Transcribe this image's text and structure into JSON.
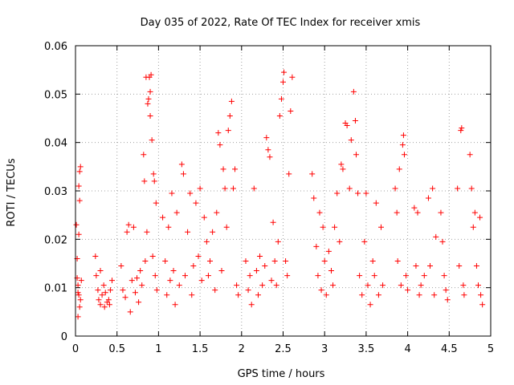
{
  "chart_data": {
    "type": "scatter",
    "title": "Day 035 of 2022, Rate Of TEC Index for receiver xmis",
    "xlabel": "GPS time / hours",
    "ylabel": "ROTI / TECUs",
    "xlim": [
      0,
      5
    ],
    "ylim": [
      0,
      0.06
    ],
    "x_ticks": [
      "0",
      "0.5",
      "1",
      "1.5",
      "2",
      "2.5",
      "3",
      "3.5",
      "4",
      "4.5",
      "5"
    ],
    "y_ticks": [
      "0",
      "0.01",
      "0.02",
      "0.03",
      "0.04",
      "0.05",
      "0.06"
    ],
    "grid": true,
    "marker": "+",
    "color": "#ff0000",
    "series": [
      {
        "points": [
          [
            0.01,
            0.023
          ],
          [
            0.02,
            0.016
          ],
          [
            0.02,
            0.012
          ],
          [
            0.03,
            0.009
          ],
          [
            0.03,
            0.004
          ],
          [
            0.04,
            0.031
          ],
          [
            0.04,
            0.021
          ],
          [
            0.05,
            0.034
          ],
          [
            0.05,
            0.028
          ],
          [
            0.06,
            0.035
          ],
          [
            0.03,
            0.0105
          ],
          [
            0.04,
            0.0085
          ],
          [
            0.06,
            0.0075
          ],
          [
            0.07,
            0.0115
          ],
          [
            0.05,
            0.006
          ],
          [
            0.24,
            0.0165
          ],
          [
            0.25,
            0.0125
          ],
          [
            0.27,
            0.0095
          ],
          [
            0.28,
            0.0075
          ],
          [
            0.3,
            0.0065
          ],
          [
            0.32,
            0.0085
          ],
          [
            0.34,
            0.0105
          ],
          [
            0.36,
            0.009
          ],
          [
            0.38,
            0.007
          ],
          [
            0.4,
            0.0075
          ],
          [
            0.42,
            0.0095
          ],
          [
            0.44,
            0.0115
          ],
          [
            0.3,
            0.0135
          ],
          [
            0.35,
            0.006
          ],
          [
            0.41,
            0.0065
          ],
          [
            0.55,
            0.0145
          ],
          [
            0.57,
            0.0095
          ],
          [
            0.6,
            0.008
          ],
          [
            0.62,
            0.0215
          ],
          [
            0.64,
            0.023
          ],
          [
            0.66,
            0.005
          ],
          [
            0.68,
            0.0115
          ],
          [
            0.7,
            0.0225
          ],
          [
            0.72,
            0.009
          ],
          [
            0.74,
            0.012
          ],
          [
            0.76,
            0.007
          ],
          [
            0.78,
            0.0135
          ],
          [
            0.8,
            0.0105
          ],
          [
            0.82,
            0.0375
          ],
          [
            0.83,
            0.032
          ],
          [
            0.84,
            0.0155
          ],
          [
            0.85,
            0.0535
          ],
          [
            0.86,
            0.0215
          ],
          [
            0.87,
            0.048
          ],
          [
            0.88,
            0.049
          ],
          [
            0.89,
            0.0535
          ],
          [
            0.9,
            0.0505
          ],
          [
            0.9,
            0.0455
          ],
          [
            0.91,
            0.054
          ],
          [
            0.92,
            0.0405
          ],
          [
            0.93,
            0.0165
          ],
          [
            0.94,
            0.0335
          ],
          [
            0.95,
            0.032
          ],
          [
            0.96,
            0.0125
          ],
          [
            0.97,
            0.0275
          ],
          [
            0.98,
            0.0095
          ],
          [
            1.05,
            0.0245
          ],
          [
            1.08,
            0.0155
          ],
          [
            1.1,
            0.0085
          ],
          [
            1.12,
            0.0225
          ],
          [
            1.14,
            0.0115
          ],
          [
            1.16,
            0.0295
          ],
          [
            1.18,
            0.0135
          ],
          [
            1.2,
            0.0065
          ],
          [
            1.22,
            0.0255
          ],
          [
            1.25,
            0.0105
          ],
          [
            1.28,
            0.0355
          ],
          [
            1.3,
            0.0335
          ],
          [
            1.32,
            0.0125
          ],
          [
            1.35,
            0.0215
          ],
          [
            1.38,
            0.0295
          ],
          [
            1.4,
            0.0085
          ],
          [
            1.42,
            0.0145
          ],
          [
            1.45,
            0.0275
          ],
          [
            1.48,
            0.0165
          ],
          [
            1.5,
            0.0305
          ],
          [
            1.52,
            0.0115
          ],
          [
            1.55,
            0.0245
          ],
          [
            1.58,
            0.0195
          ],
          [
            1.6,
            0.0125
          ],
          [
            1.62,
            0.0155
          ],
          [
            1.65,
            0.0215
          ],
          [
            1.68,
            0.0095
          ],
          [
            1.7,
            0.0255
          ],
          [
            1.72,
            0.042
          ],
          [
            1.74,
            0.0395
          ],
          [
            1.76,
            0.0135
          ],
          [
            1.78,
            0.0345
          ],
          [
            1.8,
            0.0305
          ],
          [
            1.82,
            0.0225
          ],
          [
            1.84,
            0.0425
          ],
          [
            1.86,
            0.0455
          ],
          [
            1.88,
            0.0485
          ],
          [
            1.9,
            0.0305
          ],
          [
            1.92,
            0.0345
          ],
          [
            1.94,
            0.0105
          ],
          [
            1.96,
            0.0085
          ],
          [
            2.05,
            0.0155
          ],
          [
            2.08,
            0.0095
          ],
          [
            2.1,
            0.0125
          ],
          [
            2.12,
            0.0065
          ],
          [
            2.15,
            0.0305
          ],
          [
            2.18,
            0.0135
          ],
          [
            2.2,
            0.0085
          ],
          [
            2.22,
            0.0165
          ],
          [
            2.25,
            0.0105
          ],
          [
            2.28,
            0.0145
          ],
          [
            2.3,
            0.041
          ],
          [
            2.32,
            0.0385
          ],
          [
            2.34,
            0.037
          ],
          [
            2.36,
            0.0115
          ],
          [
            2.38,
            0.0235
          ],
          [
            2.4,
            0.0155
          ],
          [
            2.42,
            0.0105
          ],
          [
            2.44,
            0.0195
          ],
          [
            2.46,
            0.0455
          ],
          [
            2.48,
            0.049
          ],
          [
            2.5,
            0.0525
          ],
          [
            2.51,
            0.0545
          ],
          [
            2.53,
            0.0155
          ],
          [
            2.55,
            0.0125
          ],
          [
            2.57,
            0.0335
          ],
          [
            2.59,
            0.0465
          ],
          [
            2.61,
            0.0535
          ],
          [
            2.85,
            0.0335
          ],
          [
            2.87,
            0.0285
          ],
          [
            2.9,
            0.0185
          ],
          [
            2.92,
            0.0125
          ],
          [
            2.94,
            0.0255
          ],
          [
            2.96,
            0.0095
          ],
          [
            2.98,
            0.0225
          ],
          [
            3.0,
            0.0155
          ],
          [
            3.02,
            0.0085
          ],
          [
            3.05,
            0.0175
          ],
          [
            3.08,
            0.0135
          ],
          [
            3.1,
            0.0105
          ],
          [
            3.12,
            0.0225
          ],
          [
            3.15,
            0.0295
          ],
          [
            3.18,
            0.0195
          ],
          [
            3.2,
            0.0355
          ],
          [
            3.22,
            0.0345
          ],
          [
            3.25,
            0.044
          ],
          [
            3.27,
            0.0435
          ],
          [
            3.3,
            0.0305
          ],
          [
            3.32,
            0.0405
          ],
          [
            3.35,
            0.0505
          ],
          [
            3.37,
            0.0445
          ],
          [
            3.38,
            0.0375
          ],
          [
            3.4,
            0.0295
          ],
          [
            3.42,
            0.0125
          ],
          [
            3.45,
            0.0085
          ],
          [
            3.48,
            0.0195
          ],
          [
            3.5,
            0.0295
          ],
          [
            3.52,
            0.0105
          ],
          [
            3.55,
            0.0065
          ],
          [
            3.58,
            0.0155
          ],
          [
            3.6,
            0.0125
          ],
          [
            3.62,
            0.0275
          ],
          [
            3.65,
            0.0085
          ],
          [
            3.68,
            0.0225
          ],
          [
            3.7,
            0.0105
          ],
          [
            3.85,
            0.0305
          ],
          [
            3.87,
            0.0255
          ],
          [
            3.88,
            0.0155
          ],
          [
            3.9,
            0.0345
          ],
          [
            3.92,
            0.0105
          ],
          [
            3.94,
            0.0395
          ],
          [
            3.95,
            0.0415
          ],
          [
            3.96,
            0.0375
          ],
          [
            3.98,
            0.0125
          ],
          [
            4.0,
            0.0095
          ],
          [
            4.08,
            0.0265
          ],
          [
            4.1,
            0.0145
          ],
          [
            4.12,
            0.0255
          ],
          [
            4.14,
            0.0085
          ],
          [
            4.16,
            0.0105
          ],
          [
            4.2,
            0.0125
          ],
          [
            4.25,
            0.0285
          ],
          [
            4.27,
            0.0145
          ],
          [
            4.3,
            0.0305
          ],
          [
            4.32,
            0.0085
          ],
          [
            4.34,
            0.0205
          ],
          [
            4.4,
            0.0255
          ],
          [
            4.42,
            0.0195
          ],
          [
            4.44,
            0.0125
          ],
          [
            4.46,
            0.0095
          ],
          [
            4.48,
            0.0075
          ],
          [
            4.6,
            0.0305
          ],
          [
            4.62,
            0.0145
          ],
          [
            4.64,
            0.0425
          ],
          [
            4.65,
            0.043
          ],
          [
            4.67,
            0.0105
          ],
          [
            4.68,
            0.0085
          ],
          [
            4.75,
            0.0375
          ],
          [
            4.77,
            0.0305
          ],
          [
            4.79,
            0.0225
          ],
          [
            4.81,
            0.0255
          ],
          [
            4.83,
            0.0145
          ],
          [
            4.85,
            0.0105
          ],
          [
            4.87,
            0.0245
          ],
          [
            4.88,
            0.0085
          ],
          [
            4.9,
            0.0065
          ]
        ]
      }
    ]
  }
}
